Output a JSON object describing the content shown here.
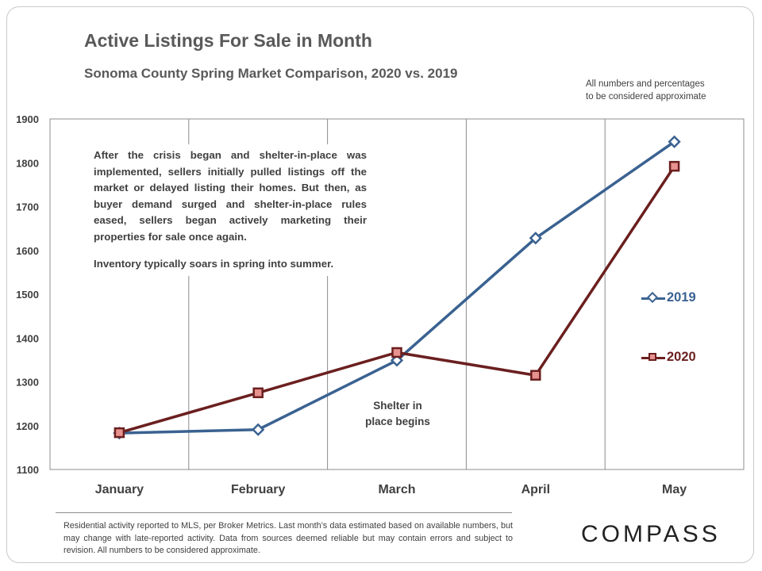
{
  "header": {
    "title": "Active Listings For Sale in Month",
    "subtitle": "Sonoma County Spring Market Comparison,  2020 vs. 2019",
    "note_line1": "All numbers and percentages",
    "note_line2": "to be considered approximate"
  },
  "callout": {
    "paragraph1": "After the crisis began and shelter-in-place was implemented, sellers initially pulled listings off the market or delayed listing their homes. But then, as buyer demand surged and shelter-in-place rules eased, sellers began actively marketing their properties for sale once again.",
    "paragraph2": "Inventory typically soars in spring into summer."
  },
  "annotation": {
    "line1": "Shelter in",
    "line2": "place begins"
  },
  "footer": {
    "footnote": "Residential activity reported to MLS, per Broker Metrics. Last month’s data estimated based on available numbers, but may change with late-reported activity. Data from sources deemed reliable but may contain errors and subject to revision. All numbers to be considered approximate.",
    "logo": "COMPASS"
  },
  "colors": {
    "series_2019": "#3a6291",
    "series_2020": "#6b1f1f",
    "marker_2020_fill": "#e8928f",
    "gridline": "#8c8c8c",
    "text": "#404040"
  },
  "chart_data": {
    "type": "line",
    "categories": [
      "January",
      "February",
      "March",
      "April",
      "May"
    ],
    "ylim": [
      1100,
      1900
    ],
    "yticks": [
      1100,
      1200,
      1300,
      1400,
      1500,
      1600,
      1700,
      1800,
      1900
    ],
    "grid": "vertical lines between categories",
    "legend_position": "right",
    "series": [
      {
        "name": "2019",
        "values": [
          1183,
          1191,
          1349,
          1628,
          1848
        ]
      },
      {
        "name": "2020",
        "values": [
          1184,
          1275,
          1367,
          1315,
          1792
        ]
      }
    ]
  }
}
